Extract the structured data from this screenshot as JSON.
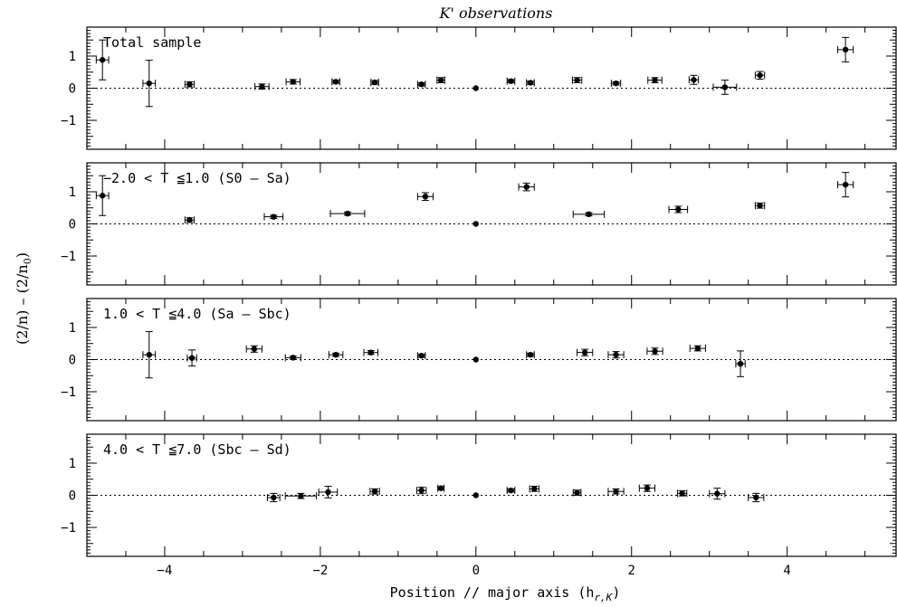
{
  "figure": {
    "title": "K' observations",
    "xlabel": "Position // major axis (h",
    "xlabel_sub": "r,K",
    "xlabel_close": ")",
    "ylabel": "(2/n) – (2/n",
    "ylabel_sub": "0",
    "ylabel_close": ")"
  },
  "chart_data": [
    {
      "type": "scatter",
      "panel_label": "Total sample",
      "xlim": [
        -5.0,
        5.4
      ],
      "ylim": [
        -1.9,
        1.9
      ],
      "yticks": [
        -1,
        0,
        1
      ],
      "ytick_labels": [
        "−1",
        "0",
        "1"
      ],
      "xticks": [],
      "reference_line": 0,
      "points": [
        {
          "x": -4.8,
          "y": 0.88,
          "yerr": 0.62,
          "xerr": 0.08
        },
        {
          "x": -4.2,
          "y": 0.15,
          "yerr": 0.72,
          "xerr": 0.08
        },
        {
          "x": -3.68,
          "y": 0.12,
          "yerr": 0.08,
          "xerr": 0.06
        },
        {
          "x": -2.75,
          "y": 0.05,
          "yerr": 0.08,
          "xerr": 0.09
        },
        {
          "x": -2.35,
          "y": 0.2,
          "yerr": 0.07,
          "xerr": 0.09
        },
        {
          "x": -1.8,
          "y": 0.2,
          "yerr": 0.05,
          "xerr": 0.05
        },
        {
          "x": -1.3,
          "y": 0.18,
          "yerr": 0.06,
          "xerr": 0.05
        },
        {
          "x": -0.7,
          "y": 0.12,
          "yerr": 0.05,
          "xerr": 0.05
        },
        {
          "x": -0.45,
          "y": 0.25,
          "yerr": 0.08,
          "xerr": 0.05
        },
        {
          "x": 0.0,
          "y": 0.0,
          "yerr": 0.0,
          "xerr": 0.0
        },
        {
          "x": 0.45,
          "y": 0.22,
          "yerr": 0.05,
          "xerr": 0.05
        },
        {
          "x": 0.7,
          "y": 0.17,
          "yerr": 0.05,
          "xerr": 0.05
        },
        {
          "x": 1.3,
          "y": 0.25,
          "yerr": 0.08,
          "xerr": 0.06
        },
        {
          "x": 1.8,
          "y": 0.15,
          "yerr": 0.05,
          "xerr": 0.06
        },
        {
          "x": 2.3,
          "y": 0.25,
          "yerr": 0.08,
          "xerr": 0.09
        },
        {
          "x": 2.8,
          "y": 0.26,
          "yerr": 0.14,
          "xerr": 0.06
        },
        {
          "x": 3.2,
          "y": 0.03,
          "yerr": 0.22,
          "xerr": 0.15
        },
        {
          "x": 3.65,
          "y": 0.4,
          "yerr": 0.12,
          "xerr": 0.06
        },
        {
          "x": 4.75,
          "y": 1.2,
          "yerr": 0.38,
          "xerr": 0.1
        }
      ]
    },
    {
      "type": "scatter",
      "panel_label": "−2.0 < T ≦1.0 (S0 – Sa)",
      "xlim": [
        -5.0,
        5.4
      ],
      "ylim": [
        -1.9,
        1.9
      ],
      "yticks": [
        -1,
        0,
        1
      ],
      "ytick_labels": [
        "−1",
        "0",
        "1"
      ],
      "xticks": [],
      "reference_line": 0,
      "points": [
        {
          "x": -4.8,
          "y": 0.88,
          "yerr": 0.62,
          "xerr": 0.08
        },
        {
          "x": -3.68,
          "y": 0.12,
          "yerr": 0.07,
          "xerr": 0.06
        },
        {
          "x": -2.6,
          "y": 0.22,
          "yerr": 0.05,
          "xerr": 0.12
        },
        {
          "x": -1.65,
          "y": 0.32,
          "yerr": 0.05,
          "xerr": 0.22
        },
        {
          "x": -0.65,
          "y": 0.85,
          "yerr": 0.12,
          "xerr": 0.1
        },
        {
          "x": 0.0,
          "y": 0.0,
          "yerr": 0.0,
          "xerr": 0.0
        },
        {
          "x": 0.65,
          "y": 1.15,
          "yerr": 0.12,
          "xerr": 0.1
        },
        {
          "x": 1.45,
          "y": 0.3,
          "yerr": 0.05,
          "xerr": 0.2
        },
        {
          "x": 2.6,
          "y": 0.45,
          "yerr": 0.1,
          "xerr": 0.12
        },
        {
          "x": 3.65,
          "y": 0.57,
          "yerr": 0.08,
          "xerr": 0.06
        },
        {
          "x": 4.75,
          "y": 1.22,
          "yerr": 0.38,
          "xerr": 0.1
        }
      ]
    },
    {
      "type": "scatter",
      "panel_label": "1.0 < T ≦4.0 (Sa – Sbc)",
      "xlim": [
        -5.0,
        5.4
      ],
      "ylim": [
        -1.9,
        1.9
      ],
      "yticks": [
        -1,
        0,
        1
      ],
      "ytick_labels": [
        "−1",
        "0",
        "1"
      ],
      "xticks": [],
      "reference_line": 0,
      "points": [
        {
          "x": -4.2,
          "y": 0.15,
          "yerr": 0.72,
          "xerr": 0.08
        },
        {
          "x": -3.65,
          "y": 0.05,
          "yerr": 0.25,
          "xerr": 0.06
        },
        {
          "x": -2.85,
          "y": 0.33,
          "yerr": 0.1,
          "xerr": 0.1
        },
        {
          "x": -2.35,
          "y": 0.06,
          "yerr": 0.05,
          "xerr": 0.1
        },
        {
          "x": -1.8,
          "y": 0.15,
          "yerr": 0.05,
          "xerr": 0.09
        },
        {
          "x": -1.35,
          "y": 0.22,
          "yerr": 0.06,
          "xerr": 0.09
        },
        {
          "x": -0.7,
          "y": 0.12,
          "yerr": 0.05,
          "xerr": 0.05
        },
        {
          "x": 0.0,
          "y": 0.0,
          "yerr": 0.0,
          "xerr": 0.0
        },
        {
          "x": 0.7,
          "y": 0.15,
          "yerr": 0.05,
          "xerr": 0.05
        },
        {
          "x": 1.4,
          "y": 0.22,
          "yerr": 0.1,
          "xerr": 0.1
        },
        {
          "x": 1.8,
          "y": 0.15,
          "yerr": 0.1,
          "xerr": 0.1
        },
        {
          "x": 2.3,
          "y": 0.26,
          "yerr": 0.1,
          "xerr": 0.1
        },
        {
          "x": 2.85,
          "y": 0.35,
          "yerr": 0.08,
          "xerr": 0.1
        },
        {
          "x": 3.4,
          "y": -0.13,
          "yerr": 0.4,
          "xerr": 0.06
        }
      ]
    },
    {
      "type": "scatter",
      "panel_label": "4.0 < T ≦7.0 (Sbc – Sd)",
      "xlim": [
        -5.0,
        5.4
      ],
      "ylim": [
        -1.9,
        1.9
      ],
      "yticks": [
        -1,
        0,
        1
      ],
      "ytick_labels": [
        "−1",
        "0",
        "1"
      ],
      "xticks": [
        -4,
        -2,
        0,
        2,
        4
      ],
      "xtick_labels": [
        "−4",
        "−2",
        "0",
        "2",
        "4"
      ],
      "reference_line": 0,
      "points": [
        {
          "x": -2.6,
          "y": -0.07,
          "yerr": 0.13,
          "xerr": 0.08
        },
        {
          "x": -2.25,
          "y": -0.02,
          "yerr": 0.08,
          "xerr": 0.2
        },
        {
          "x": -1.9,
          "y": 0.1,
          "yerr": 0.18,
          "xerr": 0.12
        },
        {
          "x": -1.3,
          "y": 0.12,
          "yerr": 0.08,
          "xerr": 0.06
        },
        {
          "x": -0.7,
          "y": 0.15,
          "yerr": 0.1,
          "xerr": 0.06
        },
        {
          "x": -0.45,
          "y": 0.22,
          "yerr": 0.05,
          "xerr": 0.04
        },
        {
          "x": 0.0,
          "y": 0.0,
          "yerr": 0.0,
          "xerr": 0.0
        },
        {
          "x": 0.45,
          "y": 0.15,
          "yerr": 0.05,
          "xerr": 0.05
        },
        {
          "x": 0.75,
          "y": 0.2,
          "yerr": 0.08,
          "xerr": 0.06
        },
        {
          "x": 1.3,
          "y": 0.08,
          "yerr": 0.08,
          "xerr": 0.05
        },
        {
          "x": 1.8,
          "y": 0.12,
          "yerr": 0.08,
          "xerr": 0.1
        },
        {
          "x": 2.2,
          "y": 0.22,
          "yerr": 0.1,
          "xerr": 0.1
        },
        {
          "x": 2.65,
          "y": 0.06,
          "yerr": 0.08,
          "xerr": 0.06
        },
        {
          "x": 3.1,
          "y": 0.05,
          "yerr": 0.17,
          "xerr": 0.1
        },
        {
          "x": 3.6,
          "y": -0.07,
          "yerr": 0.13,
          "xerr": 0.1
        }
      ]
    }
  ]
}
